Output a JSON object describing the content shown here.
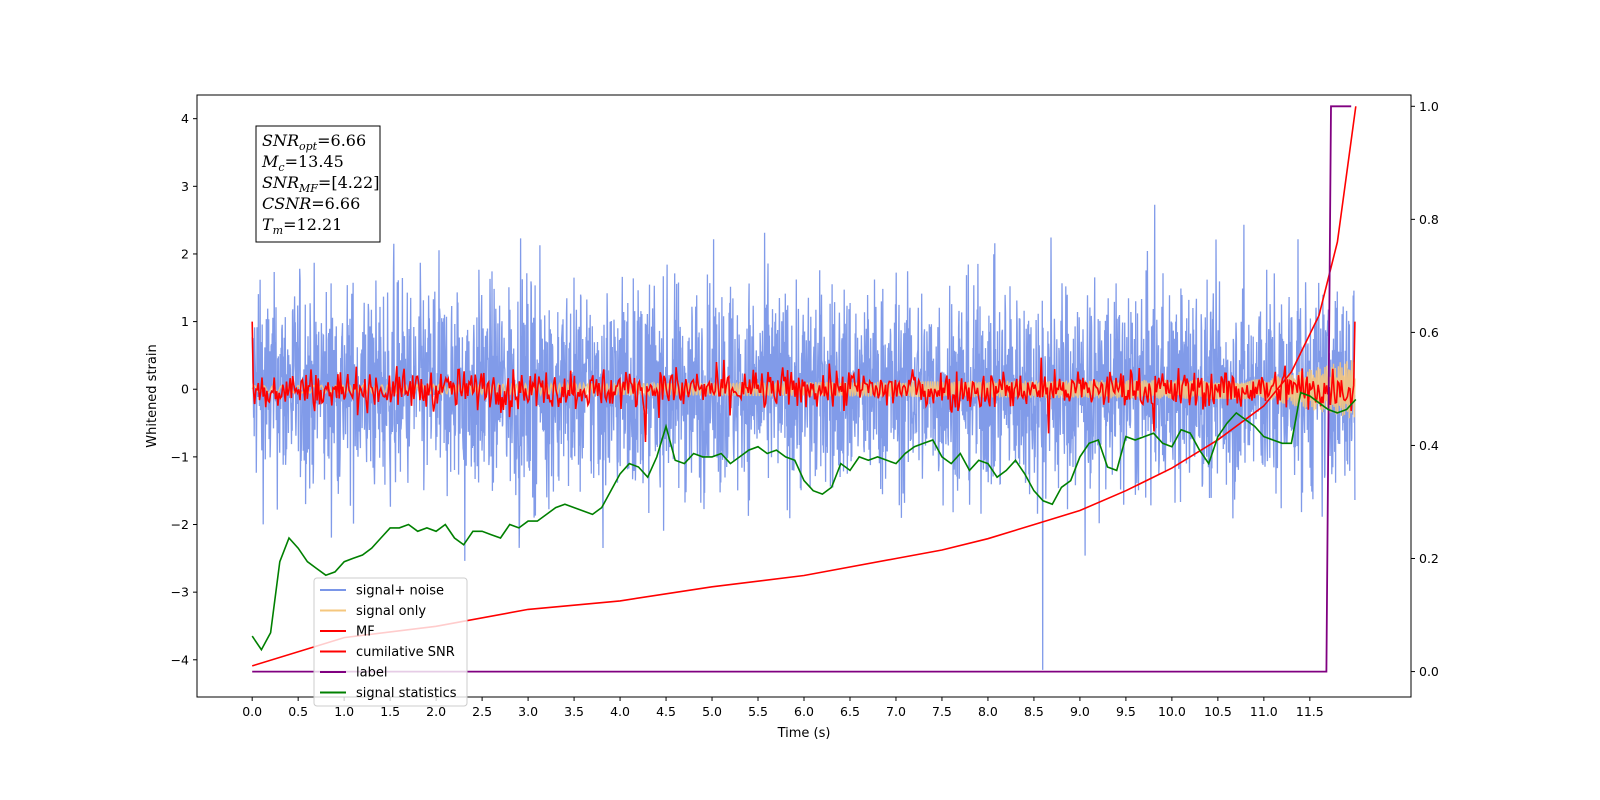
{
  "chart_data": {
    "type": "line",
    "title": "",
    "xlabel": "Time (s)",
    "ylabel": "Whitened strain",
    "xlim": [
      -0.6,
      12.6
    ],
    "ylim": [
      -4.55,
      4.35
    ],
    "y2lim": [
      -0.045,
      1.02
    ],
    "grid": false,
    "legend_position": "lower-left",
    "x_ticks": [
      "0.0",
      "0.5",
      "1.0",
      "1.5",
      "2.0",
      "2.5",
      "3.0",
      "3.5",
      "4.0",
      "4.5",
      "5.0",
      "5.5",
      "6.0",
      "6.5",
      "7.0",
      "7.5",
      "8.0",
      "8.5",
      "9.0",
      "9.5",
      "10.0",
      "10.5",
      "11.0",
      "11.5"
    ],
    "y_ticks": [
      "4",
      "3",
      "2",
      "1",
      "0",
      "−1",
      "−2",
      "−3",
      "−4"
    ],
    "y2_ticks": [
      "1.0",
      "0.8",
      "0.6",
      "0.4",
      "0.2",
      "0.0"
    ],
    "annotation": {
      "lines": [
        {
          "base": "SNR",
          "sub": "opt",
          "value": "=6.66"
        },
        {
          "base": "M",
          "sub": "c",
          "value": "=13.45"
        },
        {
          "base": "SNR",
          "sub": "MF",
          "value": "=[4.22]"
        },
        {
          "base": "CSNR",
          "sub": "",
          "value": "=6.66"
        },
        {
          "base": "T",
          "sub": "m",
          "value": "=12.21"
        }
      ]
    },
    "series": [
      {
        "name": "signal+ noise",
        "color": "#7a96e8",
        "axis": "left",
        "noise_amplitude": 1.4,
        "y_min": -4.15,
        "y_max": 3.95
      },
      {
        "name": "signal only",
        "color": "#f5c77e",
        "axis": "left",
        "x": [
          0.0,
          11.0,
          12.0
        ],
        "amplitude": [
          0.05,
          0.15,
          0.45
        ]
      },
      {
        "name": "MF",
        "color": "#ff0000",
        "axis": "left",
        "noise_amplitude": 0.25,
        "start_value": 1.0,
        "end_value": 1.0
      },
      {
        "name": "cumilative SNR",
        "color": "#ff0000",
        "axis": "right",
        "x": [
          0.0,
          1.0,
          2.0,
          3.0,
          4.0,
          5.0,
          6.0,
          7.0,
          7.5,
          8.0,
          8.5,
          9.0,
          9.5,
          10.0,
          10.5,
          11.0,
          11.3,
          11.6,
          11.8,
          12.0
        ],
        "y": [
          0.01,
          0.06,
          0.08,
          0.11,
          0.125,
          0.15,
          0.17,
          0.2,
          0.215,
          0.235,
          0.26,
          0.285,
          0.32,
          0.36,
          0.41,
          0.47,
          0.53,
          0.63,
          0.76,
          1.0
        ]
      },
      {
        "name": "label",
        "color": "#800080",
        "axis": "right",
        "x": [
          0.0,
          11.68,
          11.73,
          11.95
        ],
        "y": [
          0.0,
          0.0,
          1.0,
          1.0
        ]
      },
      {
        "name": "signal statistics",
        "color": "#008000",
        "axis": "left",
        "x": [
          0.0,
          0.1,
          0.2,
          0.3,
          0.4,
          0.5,
          0.6,
          0.7,
          0.8,
          0.9,
          1.0,
          1.1,
          1.2,
          1.3,
          1.4,
          1.5,
          1.6,
          1.7,
          1.8,
          1.9,
          2.0,
          2.1,
          2.2,
          2.3,
          2.4,
          2.5,
          2.6,
          2.7,
          2.8,
          2.9,
          3.0,
          3.1,
          3.2,
          3.3,
          3.4,
          3.5,
          3.6,
          3.7,
          3.8,
          3.9,
          4.0,
          4.1,
          4.2,
          4.3,
          4.4,
          4.5,
          4.6,
          4.7,
          4.8,
          4.9,
          5.0,
          5.1,
          5.2,
          5.3,
          5.4,
          5.5,
          5.6,
          5.7,
          5.8,
          5.9,
          6.0,
          6.1,
          6.2,
          6.3,
          6.4,
          6.5,
          6.6,
          6.7,
          6.8,
          6.9,
          7.0,
          7.1,
          7.2,
          7.3,
          7.4,
          7.5,
          7.6,
          7.7,
          7.8,
          7.9,
          8.0,
          8.1,
          8.2,
          8.3,
          8.4,
          8.5,
          8.6,
          8.7,
          8.8,
          8.9,
          9.0,
          9.1,
          9.2,
          9.3,
          9.4,
          9.5,
          9.6,
          9.7,
          9.8,
          9.9,
          10.0,
          10.1,
          10.2,
          10.3,
          10.4,
          10.5,
          10.6,
          10.7,
          10.8,
          10.9,
          11.0,
          11.1,
          11.2,
          11.3,
          11.4,
          11.5,
          11.6,
          11.7,
          11.8,
          11.9,
          12.0
        ],
        "y": [
          -3.65,
          -3.85,
          -3.6,
          -2.55,
          -2.2,
          -2.35,
          -2.55,
          -2.65,
          -2.75,
          -2.7,
          -2.55,
          -2.5,
          -2.45,
          -2.35,
          -2.2,
          -2.05,
          -2.05,
          -2.0,
          -2.1,
          -2.05,
          -2.1,
          -2.0,
          -2.2,
          -2.3,
          -2.1,
          -2.1,
          -2.15,
          -2.2,
          -2.0,
          -2.05,
          -1.95,
          -1.95,
          -1.85,
          -1.75,
          -1.7,
          -1.75,
          -1.8,
          -1.85,
          -1.75,
          -1.5,
          -1.25,
          -1.1,
          -1.15,
          -1.3,
          -1.0,
          -0.55,
          -1.05,
          -1.1,
          -0.95,
          -1.0,
          -1.0,
          -0.95,
          -1.1,
          -1.0,
          -0.9,
          -0.85,
          -0.95,
          -0.9,
          -1.0,
          -1.05,
          -1.35,
          -1.5,
          -1.55,
          -1.45,
          -1.1,
          -1.2,
          -1.0,
          -1.05,
          -1.0,
          -1.05,
          -1.1,
          -0.95,
          -0.85,
          -0.8,
          -0.75,
          -1.0,
          -1.1,
          -0.95,
          -1.2,
          -1.05,
          -1.1,
          -1.3,
          -1.2,
          -1.05,
          -1.25,
          -1.5,
          -1.65,
          -1.7,
          -1.45,
          -1.35,
          -1.0,
          -0.8,
          -0.75,
          -1.15,
          -1.2,
          -0.7,
          -0.75,
          -0.7,
          -0.65,
          -0.8,
          -0.85,
          -0.6,
          -0.65,
          -0.9,
          -1.1,
          -0.7,
          -0.5,
          -0.35,
          -0.45,
          -0.55,
          -0.7,
          -0.75,
          -0.8,
          -0.8,
          -0.05,
          -0.1,
          -0.2,
          -0.3,
          -0.35,
          -0.3,
          -0.15
        ]
      }
    ]
  }
}
